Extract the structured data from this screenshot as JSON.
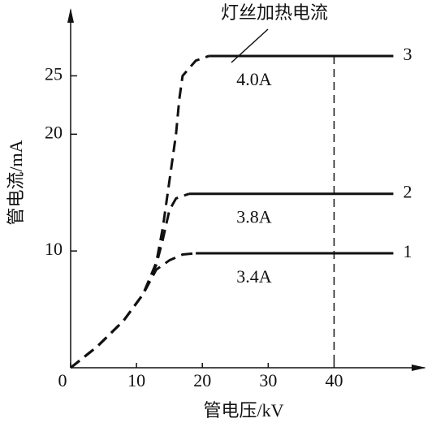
{
  "chart_data": {
    "type": "line",
    "annotation": "灯丝加热电流",
    "x_label": "管电压/kV",
    "y_label": "管电流/mA",
    "xlim": [
      0,
      54
    ],
    "ylim": [
      0,
      30.8
    ],
    "xticks": [
      0,
      10,
      20,
      30,
      40
    ],
    "yticks": [
      10,
      20,
      25
    ],
    "color": "#111111",
    "vline": {
      "x": 40,
      "style": "dashed"
    },
    "series": [
      {
        "name": "1",
        "label": "3.4A",
        "segments": [
          {
            "style": "dashed",
            "x": [
              0,
              4,
              8,
              11,
              13,
              15,
              17,
              19
            ],
            "values": [
              0,
              1.8,
              4,
              6.3,
              8.4,
              9.2,
              9.7,
              9.8
            ]
          },
          {
            "style": "solid",
            "x": [
              19,
              49
            ],
            "values": [
              9.8,
              9.8
            ]
          }
        ]
      },
      {
        "name": "2",
        "label": "3.8A",
        "segments": [
          {
            "style": "dashed",
            "x": [
              0,
              4,
              8,
              11,
              13,
              14,
              15,
              16,
              18
            ],
            "values": [
              0,
              1.8,
              4,
              6.3,
              8.8,
              11,
              13.5,
              14.5,
              14.9
            ]
          },
          {
            "style": "solid",
            "x": [
              18,
              49
            ],
            "values": [
              14.9,
              14.9
            ]
          }
        ]
      },
      {
        "name": "3",
        "label": "4.0A",
        "segments": [
          {
            "style": "dashed",
            "x": [
              0,
              4,
              8,
              11,
              13,
              14,
              15,
              16,
              16.5,
              17,
              19,
              21
            ],
            "values": [
              0,
              1.8,
              4,
              6.3,
              9,
              12,
              16,
              20,
              23,
              25,
              26.3,
              26.7
            ]
          },
          {
            "style": "solid",
            "x": [
              21,
              49
            ],
            "values": [
              26.7,
              26.7
            ]
          }
        ]
      }
    ]
  }
}
